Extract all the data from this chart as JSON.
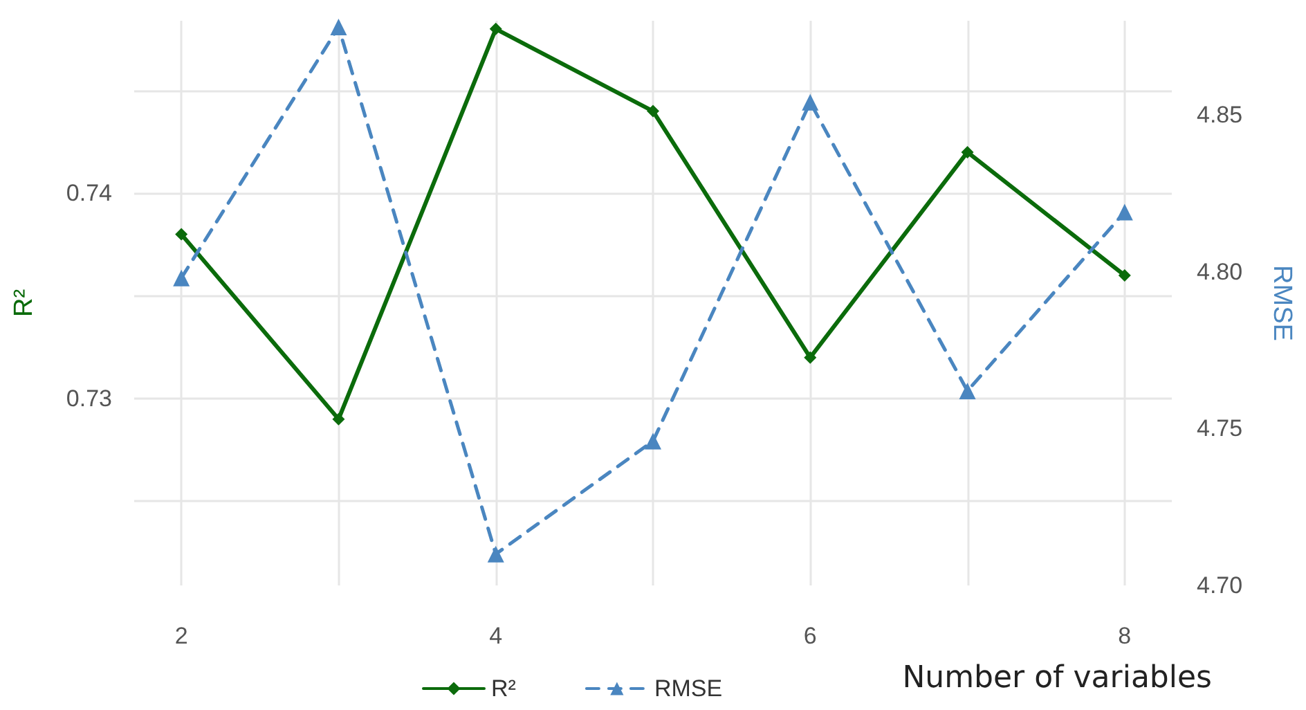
{
  "chart_data": {
    "type": "line",
    "x": [
      2,
      3,
      4,
      5,
      6,
      7,
      8
    ],
    "series": [
      {
        "name": "R²",
        "color": "#0b6b0b",
        "values": [
          0.738,
          0.729,
          0.748,
          0.744,
          0.732,
          0.742,
          0.736
        ],
        "marker": "diamond",
        "line_style": "solid"
      },
      {
        "name": "RMSE",
        "color": "#4a86c0",
        "axis": "y2",
        "values": [
          4.798,
          4.878,
          4.71,
          4.746,
          4.854,
          4.762,
          4.819
        ],
        "marker": "triangle",
        "line_style": "dashed"
      }
    ],
    "xlabel": "Number of variables",
    "ylabel": "R²",
    "y2label": "RMSE",
    "xlim": [
      1.7,
      8.3
    ],
    "xticks": [
      2,
      {
        "value": 3,
        "label": null
      },
      4,
      {
        "value": 5,
        "label": null
      },
      6,
      {
        "value": 7,
        "label": null
      },
      8
    ],
    "ylim": [
      0.7209,
      0.7484
    ],
    "yticks": [
      {
        "value": 0.725,
        "label": null
      },
      0.73,
      {
        "value": 0.735,
        "label": null
      },
      0.74,
      {
        "value": 0.745,
        "label": null
      }
    ],
    "y2lim": [
      4.7,
      4.88
    ],
    "y2ticks": [
      {
        "value": 4.7,
        "label": "4.70"
      },
      4.75,
      {
        "value": 4.8,
        "label": "4.80"
      },
      4.85
    ],
    "grid": true,
    "legend": "bottom"
  }
}
